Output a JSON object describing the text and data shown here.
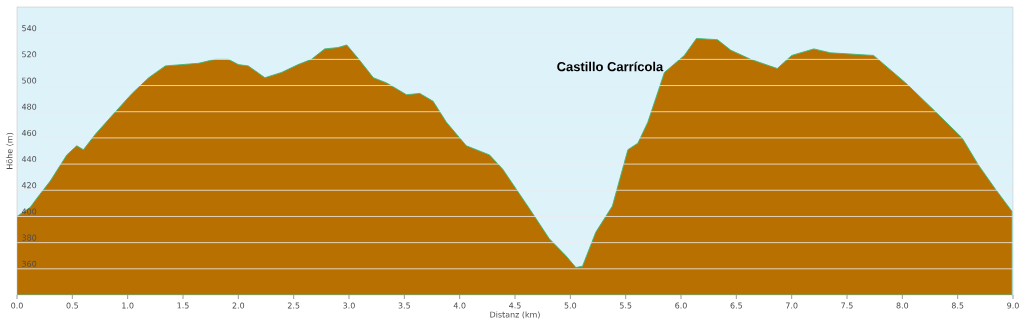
{
  "chart_data": {
    "type": "area",
    "xlabel": "Distanz  (km)",
    "ylabel": "Höhe (m)",
    "x": [
      0,
      0.12,
      0.18,
      0.3,
      0.45,
      0.54,
      0.6,
      0.71,
      0.89,
      1.04,
      1.19,
      1.34,
      1.49,
      1.64,
      1.79,
      1.91,
      2.0,
      2.09,
      2.24,
      2.39,
      2.54,
      2.66,
      2.78,
      2.9,
      2.98,
      3.08,
      3.22,
      3.34,
      3.52,
      3.64,
      3.76,
      3.88,
      4.06,
      4.27,
      4.39,
      4.51,
      4.63,
      4.81,
      4.96,
      5.05,
      5.11,
      5.23,
      5.38,
      5.52,
      5.61,
      5.7,
      5.85,
      6.03,
      6.14,
      6.33,
      6.45,
      6.63,
      6.87,
      7.0,
      7.2,
      7.35,
      7.74,
      8.03,
      8.3,
      8.54,
      8.69,
      8.84,
      8.99
    ],
    "series": [
      {
        "color": "#b87000",
        "values": [
          400,
          407,
          414,
          427,
          447,
          454,
          451,
          463,
          480,
          494,
          506,
          515,
          516,
          517,
          520,
          520,
          516,
          515,
          506,
          510,
          516,
          520,
          528,
          529,
          531,
          521,
          506,
          502,
          493,
          494,
          488,
          472,
          454,
          447,
          436,
          421,
          406,
          383,
          370,
          361,
          362,
          388,
          408,
          451,
          456,
          472,
          510,
          523,
          536,
          535,
          527,
          520,
          513,
          523,
          528,
          525,
          523,
          502,
          480,
          460,
          439,
          421,
          404
        ]
      }
    ],
    "xlim": [
      0,
      9.0
    ],
    "ylim": [
      340,
      560
    ],
    "xticks": [
      {
        "value": 0,
        "label": "0.0"
      },
      {
        "value": 0.5,
        "label": "0.5"
      },
      {
        "value": 1,
        "label": "1.0"
      },
      {
        "value": 1.5,
        "label": "1.5"
      },
      {
        "value": 2,
        "label": "2.0"
      },
      {
        "value": 2.5,
        "label": "2.5"
      },
      {
        "value": 3,
        "label": "3.0"
      },
      {
        "value": 3.5,
        "label": "3.5"
      },
      {
        "value": 4,
        "label": "4.0"
      },
      {
        "value": 4.5,
        "label": "4.5"
      },
      {
        "value": 5,
        "label": "5.0"
      },
      {
        "value": 5.5,
        "label": "5.5"
      },
      {
        "value": 6,
        "label": "6.0"
      },
      {
        "value": 6.5,
        "label": "6.5"
      },
      {
        "value": 7,
        "label": "7.0"
      },
      {
        "value": 7.5,
        "label": "7.5"
      },
      {
        "value": 8,
        "label": "8.0"
      },
      {
        "value": 8.5,
        "label": "8.5"
      },
      {
        "value": 9,
        "label": "9.0"
      }
    ],
    "yticks": [
      360,
      380,
      400,
      420,
      440,
      460,
      480,
      500,
      520,
      540
    ],
    "grid": "y",
    "annotations": [
      {
        "text": "Castillo Carrícola",
        "x": 5.85,
        "y": 510
      }
    ]
  }
}
